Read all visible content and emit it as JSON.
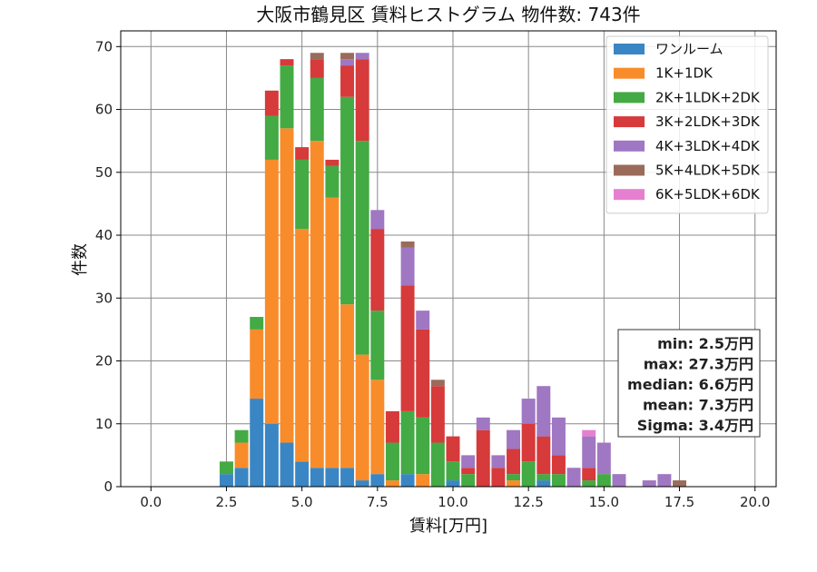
{
  "chart_data": {
    "type": "bar",
    "title": "大阪市鶴見区 賃料ヒストグラム 物件数: 743件",
    "xlabel": "賃料[万円]",
    "ylabel": "件数",
    "xlim": [
      -1.0,
      20.7
    ],
    "ylim": [
      0,
      72.5
    ],
    "xticks": [
      "0.0",
      "2.5",
      "5.0",
      "7.5",
      "10.0",
      "12.5",
      "15.0",
      "17.5",
      "20.0"
    ],
    "xtick_values": [
      0,
      2.5,
      5,
      7.5,
      10,
      12.5,
      15,
      17.5,
      20
    ],
    "yticks": [
      "0",
      "10",
      "20",
      "30",
      "40",
      "50",
      "60",
      "70"
    ],
    "ytick_values": [
      0,
      10,
      20,
      30,
      40,
      50,
      60,
      70
    ],
    "bin_width": 0.5,
    "grid": true,
    "legend_position": "top-right",
    "bins": [
      2.5,
      3.0,
      3.5,
      4.0,
      4.5,
      5.0,
      5.5,
      6.0,
      6.5,
      7.0,
      7.5,
      8.0,
      8.5,
      9.0,
      9.5,
      10.0,
      10.5,
      11.0,
      11.5,
      12.0,
      12.5,
      13.0,
      13.5,
      14.0,
      14.5,
      15.0,
      15.5,
      16.0,
      16.5,
      17.0,
      17.5
    ],
    "series": [
      {
        "name": "ワンルーム",
        "color": "#3a86c4",
        "values": [
          2,
          3,
          14,
          10,
          7,
          4,
          3,
          3,
          3,
          1,
          2,
          0,
          2,
          0,
          0,
          1,
          0,
          0,
          0,
          0,
          0,
          1,
          0,
          0,
          0,
          0,
          0,
          0,
          0,
          0,
          0
        ]
      },
      {
        "name": "1K+1DK",
        "color": "#f98c2a",
        "values": [
          0,
          4,
          11,
          42,
          50,
          37,
          52,
          43,
          26,
          20,
          15,
          1,
          0,
          2,
          0,
          0,
          0,
          0,
          0,
          1,
          0,
          0,
          0,
          0,
          0,
          0,
          0,
          0,
          0,
          0,
          0
        ]
      },
      {
        "name": "2K+1LDK+2DK",
        "color": "#44aa44",
        "values": [
          2,
          2,
          2,
          7,
          10,
          11,
          10,
          5,
          33,
          34,
          11,
          6,
          10,
          9,
          7,
          3,
          2,
          0,
          0,
          1,
          4,
          1,
          2,
          0,
          1,
          2,
          0,
          0,
          0,
          0,
          0
        ]
      },
      {
        "name": "3K+2LDK+3DK",
        "color": "#d63a3a",
        "values": [
          0,
          0,
          0,
          4,
          1,
          2,
          3,
          1,
          5,
          13,
          13,
          5,
          20,
          14,
          9,
          4,
          1,
          9,
          3,
          4,
          6,
          6,
          3,
          0,
          2,
          0,
          0,
          0,
          0,
          0,
          0
        ]
      },
      {
        "name": "4K+3LDK+4DK",
        "color": "#a077c2",
        "values": [
          0,
          0,
          0,
          0,
          0,
          0,
          0,
          0,
          1,
          1,
          3,
          0,
          6,
          3,
          0,
          0,
          2,
          2,
          2,
          3,
          4,
          8,
          6,
          3,
          5,
          5,
          2,
          0,
          1,
          2,
          0
        ]
      },
      {
        "name": "5K+4LDK+5DK",
        "color": "#9a6b5a",
        "values": [
          0,
          0,
          0,
          0,
          0,
          0,
          1,
          0,
          1,
          0,
          0,
          0,
          1,
          0,
          1,
          0,
          0,
          0,
          0,
          0,
          0,
          0,
          0,
          0,
          0,
          0,
          0,
          0,
          0,
          0,
          1
        ]
      },
      {
        "name": "6K+5LDK+6DK",
        "color": "#e67fcf",
        "values": [
          0,
          0,
          0,
          0,
          0,
          0,
          0,
          0,
          0,
          0,
          0,
          0,
          0,
          0,
          0,
          0,
          0,
          0,
          0,
          0,
          0,
          0,
          0,
          0,
          1,
          0,
          0,
          0,
          0,
          0,
          0
        ]
      }
    ],
    "stats": [
      "min: 2.5万円",
      "max: 27.3万円",
      "median: 6.6万円",
      "mean: 7.3万円",
      "Sigma: 3.4万円"
    ]
  }
}
